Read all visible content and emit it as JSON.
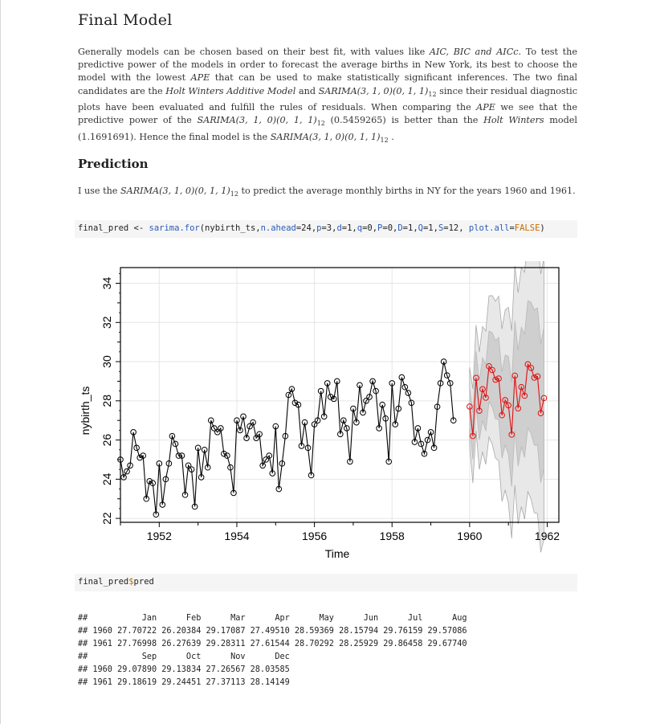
{
  "headings": {
    "final_model": "Final Model",
    "prediction": "Prediction"
  },
  "paragraph1": {
    "t1": "Generally models can be chosen based on their best fit, with values like ",
    "aic": "AIC, BIC and AICc.",
    "t2": " To test the predictive power of the models in order to forecast the average births in New York, its best to choose the model with the lowest ",
    "ape": "APE",
    "t3": " that can be used to make statistically significant inferences. The two final candidates are the ",
    "hw_model": "Holt Winters Additive Model",
    "t4": " and ",
    "sarima": "SARIMA(3, 1, 0)(0, 1, 1)",
    "sub12": "12",
    "t5": " since their residual diagnostic plots have been evaluated and fulfill the rules of residuals. When comparing the ",
    "ape2": "APE",
    "t6": " we see that the predictive power of the ",
    "sarima2": "SARIMA(3, 1, 0)(0, 1, 1)",
    "t7": " (0.5459265) is better than the ",
    "hw": "Holt Winters",
    "t8": " model (1.1691691). Hence the final model is the ",
    "sarima3": "SARIMA(3, 1, 0)(0, 1, 1)",
    "t9": " ."
  },
  "paragraph2": {
    "t1": "I use the ",
    "sarima": "SARIMA(3, 1, 0)(0, 1, 1)",
    "sub12": "12",
    "t2": " to predict the average monthly births in NY for the years 1960 and 1961."
  },
  "code1": {
    "pre": "final_pred <- ",
    "fn": "sarima.for",
    "args1": "(nybirth_ts,",
    "arg_nahead": "n.ahead",
    "args2": "=24,",
    "arg_p": "p",
    "args3": "=3,",
    "arg_d": "d",
    "args4": "=1,",
    "arg_q": "q",
    "args5": "=0,",
    "arg_P": "P",
    "args6": "=0,",
    "arg_D": "D",
    "args7": "=1,",
    "arg_Q": "Q",
    "args8": "=1,",
    "arg_S": "S",
    "args9": "=12, ",
    "arg_plotall": "plot.all",
    "args10": "=",
    "val_false": "FALSE",
    "args11": ")"
  },
  "code2": {
    "pre": "final_pred",
    "dollar": "$",
    "post": "pred"
  },
  "output_lines": [
    "##           Jan      Feb      Mar      Apr      May      Jun      Jul      Aug",
    "## 1960 27.70722 26.20384 29.17087 27.49510 28.59369 28.15794 29.76159 29.57086",
    "## 1961 27.76998 26.27639 29.28311 27.61544 28.70292 28.25929 29.86458 29.67740",
    "##           Sep      Oct      Nov      Dec",
    "## 1960 29.07890 29.13834 27.26567 28.03585",
    "## 1961 29.18619 29.24451 27.37113 28.14149"
  ],
  "chart_data": {
    "type": "line",
    "xlabel": "Time",
    "ylabel": "nybirth_ts",
    "xlim": [
      1951.0,
      1962.3
    ],
    "ylim": [
      21.8,
      34.8
    ],
    "x_ticks": [
      1952,
      1954,
      1956,
      1958,
      1960,
      1962
    ],
    "y_ticks": [
      22,
      24,
      26,
      28,
      30,
      32,
      34
    ],
    "grid": true,
    "series": [
      {
        "color": "#000000",
        "start": 1951.0,
        "frequency": 12,
        "values": [
          25.0,
          24.1,
          24.4,
          24.7,
          26.4,
          25.6,
          25.1,
          25.2,
          23.0,
          23.9,
          23.8,
          22.2,
          24.8,
          22.7,
          24.0,
          24.8,
          26.2,
          25.8,
          25.2,
          25.2,
          23.2,
          24.7,
          24.5,
          22.6,
          25.6,
          24.1,
          25.5,
          24.6,
          27.0,
          26.6,
          26.4,
          26.6,
          25.3,
          25.2,
          24.6,
          23.3,
          27.0,
          26.5,
          27.2,
          26.1,
          26.7,
          26.9,
          26.1,
          26.3,
          24.7,
          25.0,
          25.2,
          24.3,
          26.7,
          23.5,
          24.8,
          26.2,
          28.3,
          28.6,
          27.9,
          27.8,
          25.7,
          26.9,
          25.6,
          24.2,
          26.8,
          27.0,
          28.5,
          27.2,
          28.9,
          28.2,
          28.1,
          29.0,
          26.3,
          27.0,
          26.6,
          24.9,
          27.6,
          26.9,
          28.8,
          27.4,
          28.0,
          28.2,
          29.0,
          28.5,
          26.6,
          27.8,
          27.1,
          24.9,
          28.9,
          26.8,
          27.6,
          29.2,
          28.7,
          28.4,
          27.9,
          25.9,
          26.6,
          25.8,
          25.3,
          26.0,
          26.4,
          25.6,
          27.7,
          28.9,
          30.0,
          29.3,
          28.9,
          27.0
        ]
      },
      {
        "name": "pred",
        "color": "#e01010",
        "start": 1960.0,
        "frequency": 12,
        "values": [
          27.70722,
          26.20384,
          29.17087,
          27.4951,
          28.59369,
          28.15794,
          29.76159,
          29.57086,
          29.0789,
          29.13834,
          27.26567,
          28.03585,
          27.76998,
          26.27639,
          29.28311,
          27.61544,
          28.70292,
          28.25929,
          29.86458,
          29.6774,
          29.18619,
          29.24451,
          27.37113,
          28.14149
        ]
      }
    ],
    "bands": {
      "fill_inner": "#cfcfcf",
      "fill_outer": "#e8e8e8",
      "inner_half_width": [
        1.0,
        1.2,
        1.35,
        1.5,
        1.6,
        1.7,
        1.8,
        1.9,
        2.0,
        2.1,
        2.2,
        2.3,
        2.5,
        2.65,
        2.8,
        2.95,
        3.05,
        3.15,
        3.25,
        3.35,
        3.45,
        3.5,
        3.55,
        3.6
      ],
      "outer_multiplier": 2
    }
  }
}
